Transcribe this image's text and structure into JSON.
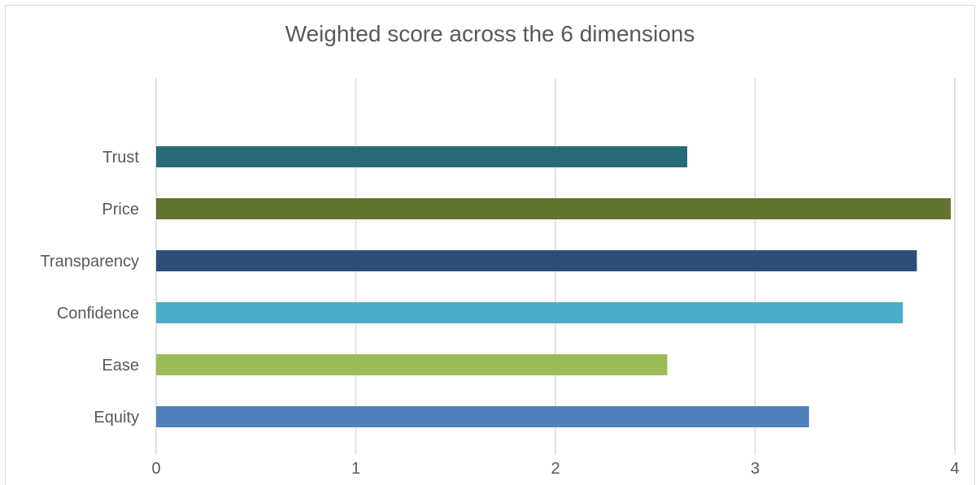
{
  "chart_data": {
    "type": "bar",
    "orientation": "horizontal",
    "title": "Weighted score across the 6 dimensions",
    "xlabel": "",
    "ylabel": "",
    "xlim": [
      0,
      4
    ],
    "xticks": [
      "0",
      "1",
      "2",
      "3",
      "4"
    ],
    "grid": true,
    "legend": "none",
    "categories": [
      "Trust",
      "Price",
      "Transparency",
      "Confidence",
      "Ease",
      "Equity"
    ],
    "values": [
      2.66,
      3.98,
      3.81,
      3.74,
      2.56,
      3.27
    ],
    "colors": [
      "#276b7a",
      "#5f7530",
      "#2e4e79",
      "#4bacc6",
      "#9bbb59",
      "#4f81bd"
    ]
  }
}
